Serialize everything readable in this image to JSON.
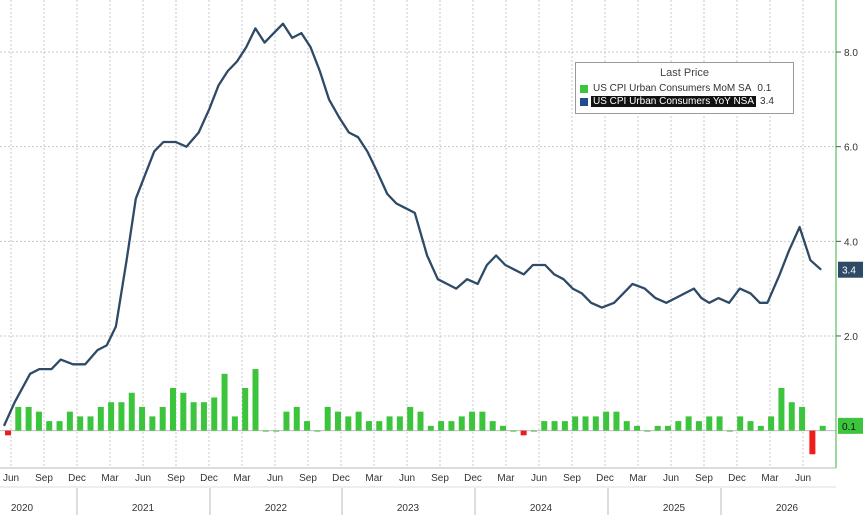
{
  "chart_data": {
    "type": "bar+line",
    "x_tick_labels": [
      "Jun",
      "Sep",
      "Dec",
      "Mar",
      "Jun",
      "Sep",
      "Dec",
      "Mar",
      "Jun",
      "Sep",
      "Dec",
      "Mar",
      "Jun",
      "Sep",
      "Dec",
      "Mar",
      "Jun",
      "Sep",
      "Dec",
      "Mar",
      "Jun",
      "Sep",
      "Dec",
      "Mar",
      "Jun"
    ],
    "year_labels": [
      "2020",
      "2021",
      "2022",
      "2023",
      "2024",
      "2025",
      "2026"
    ],
    "y_ticks": [
      "2.0",
      "4.0",
      "6.0",
      "8.0"
    ],
    "ylim": [
      -1.15,
      9.1
    ],
    "grid": true,
    "legend": {
      "title": "Last Price",
      "placement": "top-right",
      "entries": [
        {
          "name": "US CPI Urban Consumers MoM SA",
          "value": "0.1",
          "color": "#3cc43c"
        },
        {
          "name": "US CPI Urban Consumers YoY NSA",
          "value": "3.4",
          "color": "#1f4e8c"
        }
      ]
    },
    "last_labels": {
      "line": "3.4",
      "bars": "0.1"
    },
    "series": [
      {
        "kind": "line",
        "color": "#2e4a66",
        "points": [
          [
            0.0,
            0.1
          ],
          [
            0.7,
            0.6
          ],
          [
            1.7,
            1.2
          ],
          [
            2.3,
            1.3
          ],
          [
            3.1,
            1.3
          ],
          [
            3.7,
            1.5
          ],
          [
            4.5,
            1.4
          ],
          [
            5.3,
            1.4
          ],
          [
            6.1,
            1.7
          ],
          [
            6.7,
            1.8
          ],
          [
            7.3,
            2.2
          ],
          [
            8.0,
            3.6
          ],
          [
            8.6,
            4.9
          ],
          [
            9.2,
            5.4
          ],
          [
            9.8,
            5.9
          ],
          [
            10.4,
            6.1
          ],
          [
            11.2,
            6.1
          ],
          [
            11.9,
            6.0
          ],
          [
            12.7,
            6.3
          ],
          [
            13.4,
            6.8
          ],
          [
            14.0,
            7.3
          ],
          [
            14.6,
            7.6
          ],
          [
            15.2,
            7.8
          ],
          [
            15.8,
            8.1
          ],
          [
            16.4,
            8.5
          ],
          [
            17.0,
            8.2
          ],
          [
            17.6,
            8.4
          ],
          [
            18.2,
            8.6
          ],
          [
            18.8,
            8.3
          ],
          [
            19.4,
            8.4
          ],
          [
            20.0,
            8.1
          ],
          [
            20.6,
            7.6
          ],
          [
            21.2,
            7.0
          ],
          [
            21.9,
            6.6
          ],
          [
            22.5,
            6.3
          ],
          [
            23.1,
            6.2
          ],
          [
            23.7,
            5.9
          ],
          [
            24.3,
            5.5
          ],
          [
            25.0,
            5.0
          ],
          [
            25.6,
            4.8
          ],
          [
            26.2,
            4.7
          ],
          [
            26.8,
            4.6
          ],
          [
            27.6,
            3.7
          ],
          [
            28.3,
            3.2
          ],
          [
            28.9,
            3.1
          ],
          [
            29.5,
            3.0
          ],
          [
            30.2,
            3.2
          ],
          [
            30.9,
            3.1
          ],
          [
            31.5,
            3.5
          ],
          [
            32.1,
            3.7
          ],
          [
            32.7,
            3.5
          ],
          [
            33.3,
            3.4
          ],
          [
            33.9,
            3.3
          ],
          [
            34.5,
            3.5
          ],
          [
            35.3,
            3.5
          ],
          [
            35.9,
            3.3
          ],
          [
            36.5,
            3.2
          ],
          [
            37.1,
            3.0
          ],
          [
            37.7,
            2.9
          ],
          [
            38.3,
            2.7
          ],
          [
            39.0,
            2.6
          ],
          [
            39.8,
            2.7
          ],
          [
            40.4,
            2.9
          ],
          [
            41.0,
            3.1
          ],
          [
            41.8,
            3.0
          ],
          [
            42.5,
            2.8
          ],
          [
            43.2,
            2.7
          ],
          [
            43.8,
            2.8
          ],
          [
            44.4,
            2.9
          ],
          [
            45.0,
            3.0
          ],
          [
            45.5,
            2.8
          ],
          [
            46.0,
            2.7
          ],
          [
            46.6,
            2.8
          ],
          [
            47.3,
            2.7
          ],
          [
            48.0,
            3.0
          ],
          [
            48.7,
            2.9
          ],
          [
            49.3,
            2.7
          ],
          [
            49.8,
            2.7
          ],
          [
            50.6,
            3.3
          ],
          [
            51.2,
            3.8
          ],
          [
            51.9,
            4.3
          ],
          [
            52.6,
            3.6
          ],
          [
            53.3,
            3.4
          ]
        ]
      },
      {
        "kind": "bar",
        "positive_color": "#3cc43c",
        "negative_color": "#ee1c1c",
        "values": [
          -0.1,
          0.5,
          0.5,
          0.4,
          0.2,
          0.2,
          0.4,
          0.3,
          0.3,
          0.5,
          0.6,
          0.6,
          0.8,
          0.5,
          0.3,
          0.5,
          0.9,
          0.8,
          0.6,
          0.6,
          0.7,
          1.2,
          0.3,
          0.9,
          1.3,
          0.0,
          0.0,
          0.4,
          0.5,
          0.2,
          0.0,
          0.5,
          0.4,
          0.3,
          0.4,
          0.2,
          0.2,
          0.3,
          0.3,
          0.5,
          0.4,
          0.1,
          0.2,
          0.2,
          0.3,
          0.4,
          0.4,
          0.2,
          0.1,
          0.0,
          -0.1,
          0.0,
          0.2,
          0.2,
          0.2,
          0.3,
          0.3,
          0.3,
          0.4,
          0.4,
          0.2,
          0.1,
          0.0,
          0.1,
          0.1,
          0.2,
          0.3,
          0.2,
          0.3,
          0.3,
          0.0,
          0.3,
          0.2,
          0.1,
          0.3,
          0.9,
          0.6,
          0.5,
          -0.5,
          0.1
        ]
      }
    ]
  }
}
